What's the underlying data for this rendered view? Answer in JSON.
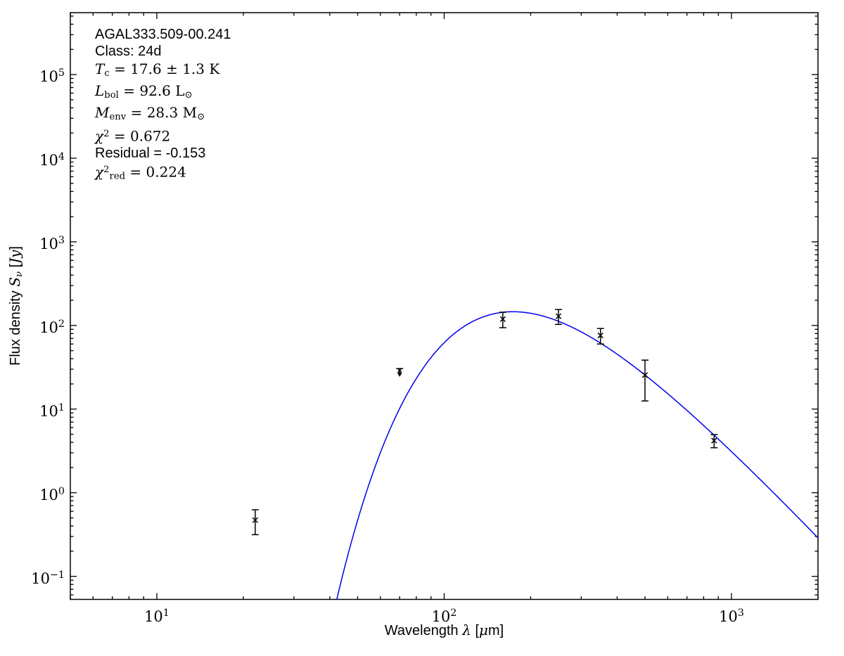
{
  "figure": {
    "background": "#ffffff",
    "annotation_lines": [
      {
        "f": "s",
        "segments": [
          {
            "t": "AGAL333.509-00.241"
          }
        ]
      },
      {
        "f": "s",
        "segments": [
          {
            "t": "Class: 24d"
          }
        ]
      },
      {
        "f": "m",
        "segments": [
          {
            "t": "T",
            "i": 1
          },
          {
            "t": "c",
            "sub": 1
          },
          {
            "t": " = 17.6 ± 1.3 K"
          }
        ]
      },
      {
        "f": "m",
        "segments": [
          {
            "t": "L",
            "i": 1
          },
          {
            "t": "bol",
            "sub": 1
          },
          {
            "t": " = 92.6 L"
          },
          {
            "t": "⊙",
            "sub": 1
          }
        ]
      },
      {
        "f": "m",
        "segments": [
          {
            "t": "M",
            "i": 1
          },
          {
            "t": "env",
            "sub": 1
          },
          {
            "t": " = 28.3 M"
          },
          {
            "t": "⊙",
            "sub": 1
          }
        ]
      },
      {
        "f": "m",
        "segments": [
          {
            "t": "χ",
            "i": 1
          },
          {
            "t": "2",
            "sup": 1
          },
          {
            "t": " = 0.672"
          }
        ]
      },
      {
        "f": "s",
        "segments": [
          {
            "t": "Residual = -0.153"
          }
        ]
      },
      {
        "f": "m",
        "segments": [
          {
            "t": "χ",
            "i": 1
          },
          {
            "t": "2",
            "sup": 1
          },
          {
            "t": "red",
            "sub": 1
          },
          {
            "t": " = 0.224"
          }
        ]
      }
    ]
  },
  "chart_data": {
    "type": "scatter",
    "title": "",
    "xlabel": "Wavelength λ [μm]",
    "ylabel": "Flux density Sν [Jy]",
    "xlabel_segments": [
      {
        "t": "Wavelength ",
        "f": "s"
      },
      {
        "t": "λ",
        "f": "m",
        "i": 1
      },
      {
        "t": " [",
        "f": "s"
      },
      {
        "t": "μ",
        "f": "m",
        "i": 1
      },
      {
        "t": "m]",
        "f": "s"
      }
    ],
    "ylabel_segments": [
      {
        "t": "Flux density ",
        "f": "s"
      },
      {
        "t": "S",
        "f": "m",
        "i": 1
      },
      {
        "t": "ν",
        "f": "m",
        "i": 1,
        "sub": 1
      },
      {
        "t": " [",
        "f": "s"
      },
      {
        "t": "Jy",
        "f": "m",
        "i": 1
      },
      {
        "t": "]",
        "f": "s"
      }
    ],
    "x_scale": "log",
    "y_scale": "log",
    "grid": false,
    "legend": "none",
    "xlim": [
      5,
      2000
    ],
    "ylim": [
      0.053,
      550000
    ],
    "x_major_ticks": [
      {
        "value": 10,
        "label_exp": "1"
      },
      {
        "value": 100,
        "label_exp": "2"
      },
      {
        "value": 1000,
        "label_exp": "3"
      }
    ],
    "y_major_ticks": [
      {
        "value": 100000,
        "label_exp": "5"
      },
      {
        "value": 10000,
        "label_exp": "4"
      },
      {
        "value": 1000,
        "label_exp": "3"
      },
      {
        "value": 100,
        "label_exp": "2"
      },
      {
        "value": 10,
        "label_exp": "1"
      },
      {
        "value": 1,
        "label_exp": "0"
      },
      {
        "value": 0.1,
        "label_exp": "−1"
      }
    ],
    "series": [
      {
        "name": "photometry",
        "type": "errorbar",
        "marker": "x",
        "color": "#000000",
        "points": [
          {
            "wavelength_um": 22,
            "flux_jy": 0.47,
            "err_jy": 0.155
          },
          {
            "wavelength_um": 160,
            "flux_jy": 119,
            "err_jy": 25
          },
          {
            "wavelength_um": 250,
            "flux_jy": 129,
            "err_jy": 26
          },
          {
            "wavelength_um": 350,
            "flux_jy": 76,
            "err_jy": 16
          },
          {
            "wavelength_um": 500,
            "flux_jy": 25.5,
            "err_jy": 13
          },
          {
            "wavelength_um": 870,
            "flux_jy": 4.2,
            "err_jy": 0.75
          }
        ]
      },
      {
        "name": "upper-limit",
        "type": "upper-limit",
        "color": "#000000",
        "points": [
          {
            "wavelength_um": 70,
            "marker_flux_jy": 29,
            "cap_flux_jy": 30.5,
            "arrow_tip_flux_jy": 24.3
          }
        ]
      },
      {
        "name": "greybody-model",
        "type": "model-curve",
        "color": "#0000ee",
        "temperature_K": 17.6,
        "beta": 1.75,
        "peak_wavelength_um": 173.6,
        "peak_flux_jy": 146
      }
    ]
  }
}
